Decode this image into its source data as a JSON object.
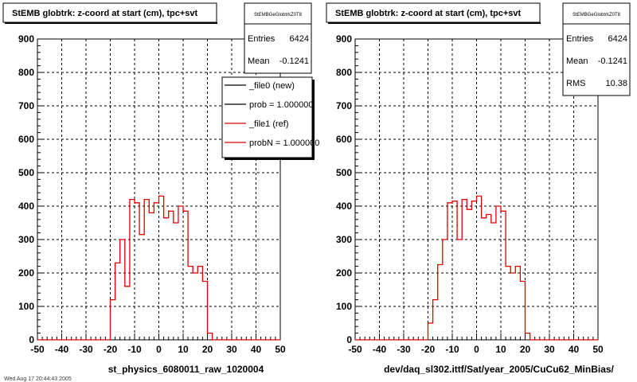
{
  "chart_data": [
    {
      "type": "histogram",
      "title": "StEMB globtrk: z-coord at start (cm), tpc+svt",
      "xlabel": "st_physics_6080011_raw_1020004",
      "xlim": [
        -50,
        50
      ],
      "ylim": [
        0,
        900
      ],
      "xticks": [
        -50,
        -40,
        -30,
        -20,
        -10,
        0,
        10,
        20,
        30,
        40,
        50
      ],
      "yticks": [
        0,
        100,
        200,
        300,
        400,
        500,
        600,
        700,
        800,
        900
      ],
      "grid": true,
      "stats": {
        "name": "StEMBGeGlobtrkZ0T8",
        "entries_label": "Entries",
        "entries": "6424",
        "mean_label": "Mean",
        "mean": "-0.1241"
      },
      "legend": {
        "placement": "top-right",
        "entries": [
          {
            "label": "_file0 (new)",
            "color": "#000000"
          },
          {
            "label": "prob = 1.000000",
            "color": "#000000"
          },
          {
            "label": "_file1 (ref)",
            "color": "#e00000"
          },
          {
            "label": "probN = 1.000000",
            "color": "#e00000"
          }
        ]
      },
      "bin_width": 2,
      "bin_edges_start": -50,
      "series": [
        {
          "color": "#e00000",
          "values": [
            0,
            0,
            0,
            0,
            0,
            0,
            0,
            0,
            0,
            0,
            0,
            0,
            0,
            0,
            0,
            120,
            230,
            300,
            160,
            420,
            410,
            315,
            420,
            380,
            410,
            430,
            365,
            385,
            350,
            400,
            385,
            220,
            200,
            220,
            175,
            20,
            0,
            0,
            0,
            0,
            0,
            0,
            0,
            0,
            0,
            0,
            0,
            0,
            0,
            0
          ]
        }
      ]
    },
    {
      "type": "histogram",
      "title": "StEMB globtrk: z-coord at start (cm), tpc+svt",
      "xlabel": "dev/daq_sl302.ittf/Sat/year_2005/CuCu62_MinBias/",
      "xlim": [
        -50,
        50
      ],
      "ylim": [
        0,
        900
      ],
      "xticks": [
        -50,
        -40,
        -30,
        -20,
        -10,
        0,
        10,
        20,
        30,
        40,
        50
      ],
      "yticks": [
        0,
        100,
        200,
        300,
        400,
        500,
        600,
        700,
        800,
        900
      ],
      "grid": true,
      "stats": {
        "name": "StEMBGeGlobtrkZ0T8",
        "entries_label": "Entries",
        "entries": "6424",
        "mean_label": "Mean",
        "mean": "-0.1241",
        "rms_label": "RMS",
        "rms": "10.38"
      },
      "series": [
        {
          "color": "#e00000",
          "values": [
            0,
            0,
            0,
            0,
            0,
            0,
            0,
            0,
            0,
            0,
            0,
            0,
            0,
            0,
            0,
            50,
            120,
            225,
            300,
            410,
            415,
            300,
            420,
            390,
            415,
            430,
            365,
            375,
            350,
            400,
            385,
            220,
            200,
            220,
            175,
            20,
            0,
            0,
            0,
            0,
            0,
            0,
            0,
            0,
            0,
            0,
            0,
            0,
            0,
            0
          ]
        }
      ]
    }
  ],
  "footer_text": "Wed Aug 17 20:44:43 2005"
}
